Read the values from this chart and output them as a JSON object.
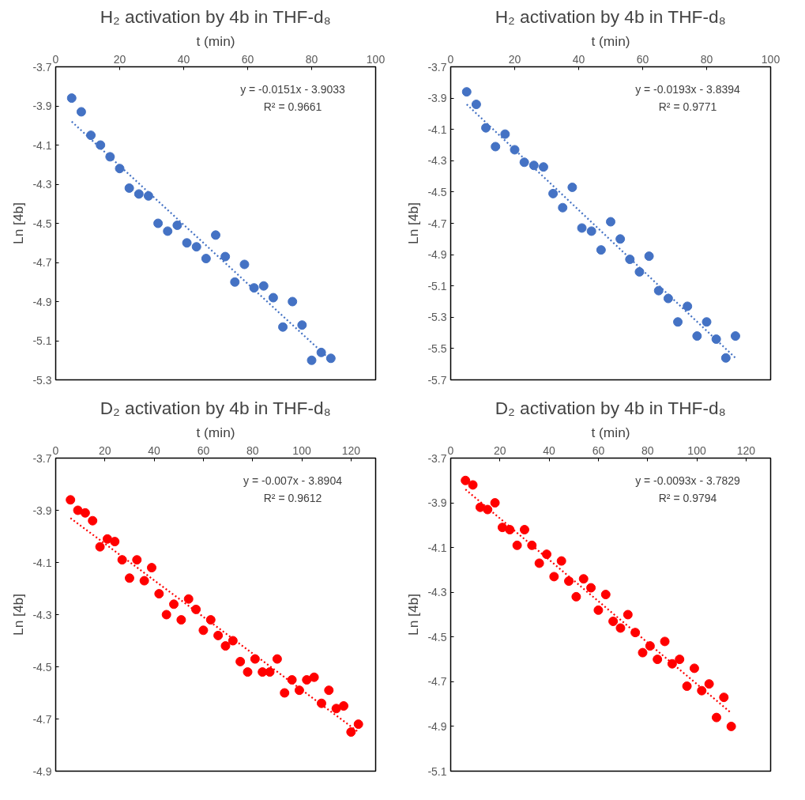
{
  "chart_data": [
    {
      "type": "scatter",
      "title": "H₂ activation by 4b in THF-d₈",
      "xlabel": "t (min)",
      "ylabel": "Ln [4b]",
      "grid": false,
      "xlim": [
        0,
        100
      ],
      "xticks": [
        0,
        20,
        40,
        60,
        80,
        100
      ],
      "ylim": [
        -5.3,
        -3.7
      ],
      "yticks": [
        -5.3,
        -5.1,
        -4.9,
        -4.7,
        -4.5,
        -4.3,
        -4.1,
        -3.9,
        -3.7
      ],
      "annotations": [
        "y = -0.0151x - 3.9033",
        "R² = 0.9661"
      ],
      "x": [
        5,
        8,
        11,
        14,
        17,
        20,
        23,
        26,
        29,
        32,
        35,
        38,
        41,
        44,
        47,
        50,
        53,
        56,
        59,
        62,
        65,
        68,
        71,
        74,
        77,
        80,
        83,
        86
      ],
      "series": [
        {
          "marker": "circle",
          "color": "#4472c4",
          "values": [
            -3.86,
            -3.93,
            -4.05,
            -4.1,
            -4.16,
            -4.22,
            -4.32,
            -4.35,
            -4.36,
            -4.5,
            -4.54,
            -4.51,
            -4.6,
            -4.62,
            -4.68,
            -4.56,
            -4.67,
            -4.8,
            -4.71,
            -4.83,
            -4.82,
            -4.88,
            -5.03,
            -4.9,
            -5.02,
            -5.2,
            -5.16,
            -5.19
          ]
        },
        {
          "type": "line",
          "marker": "none",
          "x": [
            5,
            86
          ],
          "color": "#4472c4",
          "line_style": "dotted",
          "values": [
            -3.98,
            -5.2
          ]
        }
      ]
    },
    {
      "type": "scatter",
      "title": "H₂ activation by 4b in THF-d₈",
      "xlabel": "t (min)",
      "ylabel": "Ln [4b]",
      "grid": false,
      "xlim": [
        0,
        100
      ],
      "xticks": [
        0,
        20,
        40,
        60,
        80,
        100
      ],
      "ylim": [
        -5.7,
        -3.7
      ],
      "yticks": [
        -5.7,
        -5.5,
        -5.3,
        -5.1,
        -4.9,
        -4.7,
        -4.5,
        -4.3,
        -4.1,
        -3.9,
        -3.7
      ],
      "annotations": [
        "y = -0.0193x - 3.8394",
        "R² = 0.9771"
      ],
      "x": [
        5,
        8,
        11,
        14,
        17,
        20,
        23,
        26,
        29,
        32,
        35,
        38,
        41,
        44,
        47,
        50,
        53,
        56,
        59,
        62,
        65,
        68,
        71,
        74,
        77,
        80,
        83,
        86,
        89
      ],
      "series": [
        {
          "marker": "circle",
          "color": "#4472c4",
          "values": [
            -3.86,
            -3.94,
            -4.09,
            -4.21,
            -4.13,
            -4.23,
            -4.31,
            -4.33,
            -4.34,
            -4.51,
            -4.6,
            -4.47,
            -4.73,
            -4.75,
            -4.87,
            -4.69,
            -4.8,
            -4.93,
            -5.01,
            -4.91,
            -5.13,
            -5.18,
            -5.33,
            -5.23,
            -5.42,
            -5.33,
            -5.44,
            -5.56,
            -5.42
          ]
        },
        {
          "type": "line",
          "marker": "none",
          "x": [
            5,
            89
          ],
          "color": "#4472c4",
          "line_style": "dotted",
          "values": [
            -3.94,
            -5.56
          ]
        }
      ]
    },
    {
      "type": "scatter",
      "title": "D₂ activation by 4b in THF-d₈",
      "xlabel": "t (min)",
      "ylabel": "Ln [4b]",
      "grid": false,
      "xlim": [
        0,
        130
      ],
      "xticks": [
        0,
        20,
        40,
        60,
        80,
        100,
        120
      ],
      "ylim": [
        -4.9,
        -3.7
      ],
      "yticks": [
        -4.9,
        -4.7,
        -4.5,
        -4.3,
        -4.1,
        -3.9,
        -3.7
      ],
      "annotations": [
        "y = -0.007x - 3.8904",
        "R² = 0.9612"
      ],
      "x": [
        6,
        9,
        12,
        15,
        18,
        21,
        24,
        27,
        30,
        33,
        36,
        39,
        42,
        45,
        48,
        51,
        54,
        57,
        60,
        63,
        66,
        69,
        72,
        75,
        78,
        81,
        84,
        87,
        90,
        93,
        96,
        99,
        102,
        105,
        108,
        111,
        114,
        117,
        120,
        123
      ],
      "series": [
        {
          "marker": "circle",
          "color": "#ff0000",
          "values": [
            -3.86,
            -3.9,
            -3.91,
            -3.94,
            -4.04,
            -4.01,
            -4.02,
            -4.09,
            -4.16,
            -4.09,
            -4.17,
            -4.12,
            -4.22,
            -4.3,
            -4.26,
            -4.32,
            -4.24,
            -4.28,
            -4.36,
            -4.32,
            -4.38,
            -4.42,
            -4.4,
            -4.48,
            -4.52,
            -4.47,
            -4.52,
            -4.52,
            -4.47,
            -4.6,
            -4.55,
            -4.59,
            -4.55,
            -4.54,
            -4.64,
            -4.59,
            -4.66,
            -4.65,
            -4.75,
            -4.72
          ]
        },
        {
          "type": "line",
          "marker": "none",
          "x": [
            6,
            123
          ],
          "color": "#ff0000",
          "line_style": "dotted",
          "values": [
            -3.93,
            -4.75
          ]
        }
      ]
    },
    {
      "type": "scatter",
      "title": "D₂ activation by 4b in THF-d₈",
      "xlabel": "t (min)",
      "ylabel": "Ln [4b]",
      "grid": false,
      "xlim": [
        0,
        130
      ],
      "xticks": [
        0,
        20,
        40,
        60,
        80,
        100,
        120
      ],
      "ylim": [
        -5.1,
        -3.7
      ],
      "yticks": [
        -5.1,
        -4.9,
        -4.7,
        -4.5,
        -4.3,
        -4.1,
        -3.9,
        -3.7
      ],
      "annotations": [
        "y = -0.0093x - 3.7829",
        "R² = 0.9794"
      ],
      "x": [
        6,
        9,
        12,
        15,
        18,
        21,
        24,
        27,
        30,
        33,
        36,
        39,
        42,
        45,
        48,
        51,
        54,
        57,
        60,
        63,
        66,
        69,
        72,
        75,
        78,
        81,
        84,
        87,
        90,
        93,
        96,
        99,
        102,
        105,
        108,
        111,
        114
      ],
      "series": [
        {
          "marker": "circle",
          "color": "#ff0000",
          "values": [
            -3.8,
            -3.82,
            -3.92,
            -3.93,
            -3.9,
            -4.01,
            -4.02,
            -4.09,
            -4.02,
            -4.09,
            -4.17,
            -4.13,
            -4.23,
            -4.16,
            -4.25,
            -4.32,
            -4.24,
            -4.28,
            -4.38,
            -4.31,
            -4.43,
            -4.46,
            -4.4,
            -4.48,
            -4.57,
            -4.54,
            -4.6,
            -4.52,
            -4.62,
            -4.6,
            -4.72,
            -4.64,
            -4.74,
            -4.71,
            -4.86,
            -4.77,
            -4.9
          ]
        },
        {
          "type": "line",
          "marker": "none",
          "x": [
            6,
            114
          ],
          "color": "#ff0000",
          "line_style": "dotted",
          "values": [
            -3.84,
            -4.84
          ]
        }
      ]
    }
  ]
}
